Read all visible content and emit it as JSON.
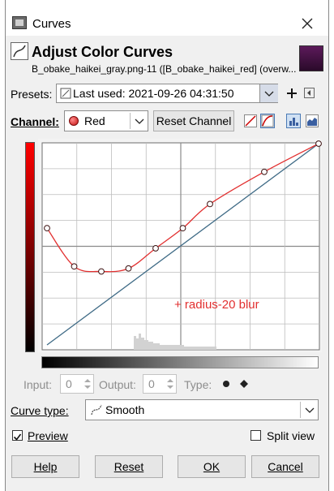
{
  "window": {
    "title": "Curves"
  },
  "header": {
    "title": "Adjust Color Curves",
    "subtitle": "B_obake_haikei_gray.png-11 ([B_obake_haikei_red] (overw..."
  },
  "presets": {
    "label": "Presets:",
    "value": "Last used: 2021-09-26 04:31:50"
  },
  "channel": {
    "label": "Channel:",
    "value": "Red",
    "reset_label": "Reset Channel"
  },
  "graph": {
    "annotation": "+ radius-20 blur",
    "control_points": [
      [
        0,
        0.58
      ],
      [
        0.1,
        0.39
      ],
      [
        0.2,
        0.365
      ],
      [
        0.3,
        0.38
      ],
      [
        0.4,
        0.48
      ],
      [
        0.5,
        0.58
      ],
      [
        0.6,
        0.7
      ],
      [
        0.8,
        0.86
      ],
      [
        1,
        1
      ]
    ],
    "identity_line": [
      [
        0,
        0
      ],
      [
        1,
        1
      ]
    ],
    "curve_color": "#e23030",
    "identity_color": "#3f6b86"
  },
  "point_editor": {
    "input_label": "Input:",
    "input_value": "0",
    "output_label": "Output:",
    "output_value": "0",
    "type_label": "Type:"
  },
  "curve_type": {
    "label": "Curve type:",
    "value": "Smooth"
  },
  "options": {
    "preview_label": "Preview",
    "preview_checked": true,
    "split_label": "Split view",
    "split_checked": false
  },
  "buttons": {
    "help": "Help",
    "reset": "Reset",
    "ok": "OK",
    "cancel": "Cancel"
  }
}
